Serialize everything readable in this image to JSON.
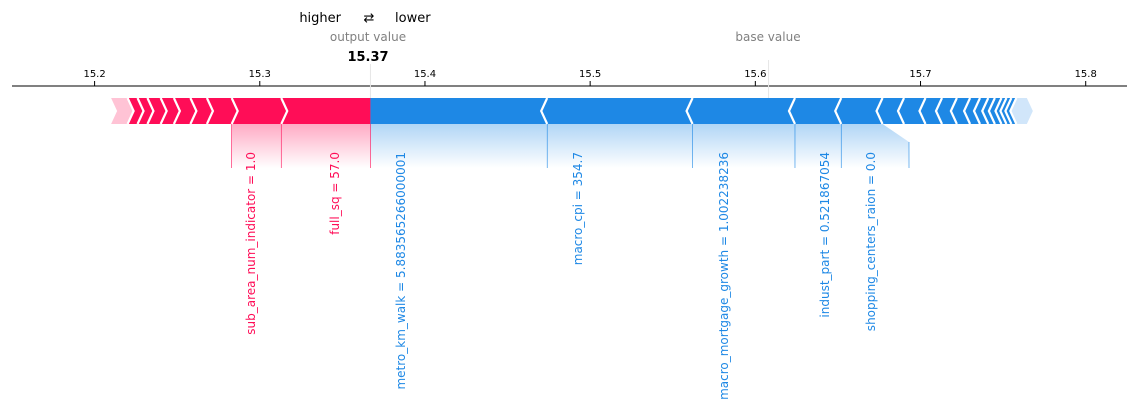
{
  "chart_data": {
    "type": "force",
    "legend": {
      "higher": "higher",
      "arrow": "⇄",
      "lower": "lower"
    },
    "output_caption": "output value",
    "base_caption": "base value",
    "output_value_label": "15.37",
    "output_value": 15.367,
    "base_value": 15.608,
    "x_range": [
      15.15,
      15.825
    ],
    "x_ticks": [
      15.2,
      15.3,
      15.4,
      15.5,
      15.6,
      15.7,
      15.8
    ],
    "x_tick_labels": [
      "15.2",
      "15.3",
      "15.4",
      "15.5",
      "15.6",
      "15.7",
      "15.8"
    ],
    "low_end": 15.21,
    "high_end": 15.768,
    "positive_features": [
      {
        "label": "sub_area_num_indicator = 1.0",
        "start": 15.283,
        "end": 15.313
      },
      {
        "label": "full_sq = 57.0",
        "start": 15.313,
        "end": 15.367
      }
    ],
    "positive_small_edges": [
      15.22,
      15.226,
      15.232,
      15.24,
      15.248,
      15.258,
      15.268,
      15.283
    ],
    "negative_features": [
      {
        "label": "metro_km_walk = 5.883565266000001",
        "start": 15.367,
        "end": 15.474
      },
      {
        "label": "macro_cpi = 354.7",
        "start": 15.474,
        "end": 15.562
      },
      {
        "label": "macro_mortgage_growth = 1.002238236",
        "start": 15.562,
        "end": 15.624
      },
      {
        "label": "indust_part = 0.521867054",
        "start": 15.624,
        "end": 15.652
      },
      {
        "label": "shopping_centers_raion = 0.0",
        "start": 15.652,
        "end": 15.677
      }
    ],
    "negative_small_edges": [
      15.677,
      15.69,
      15.703,
      15.713,
      15.722,
      15.73,
      15.736,
      15.741,
      15.745,
      15.749,
      15.752,
      15.755,
      15.758
    ],
    "colors": {
      "positive": "#ff0d57",
      "negative": "#1e88e5",
      "positive_light": "#ffc3d5",
      "negative_light": "#d1e6fa",
      "axis": "#000000",
      "caption": "#808080"
    }
  }
}
